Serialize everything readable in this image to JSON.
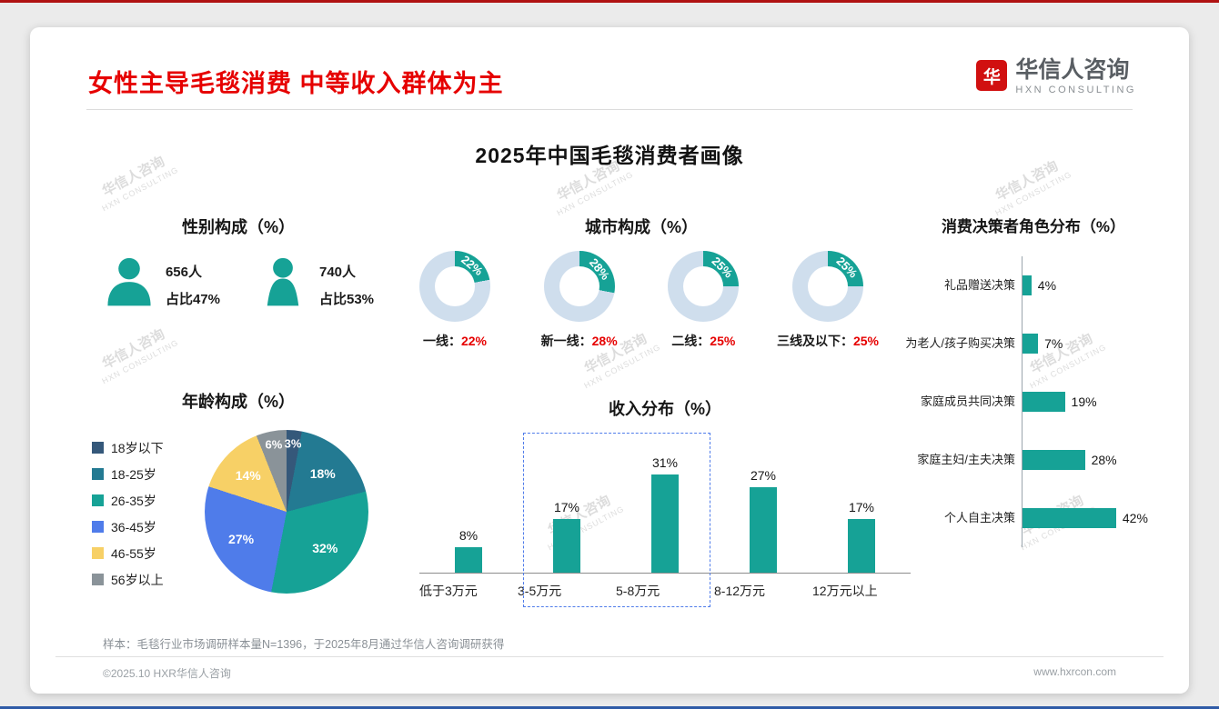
{
  "header": {
    "title": "女性主导毛毯消费 中等收入群体为主",
    "logo_glyph": "华",
    "logo_name": "华信人咨询",
    "logo_sub": "HXN CONSULTING"
  },
  "main_title": "2025年中国毛毯消费者画像",
  "watermark": {
    "line1": "华信人咨询",
    "line2": "HXN CONSULTING"
  },
  "colors": {
    "teal": "#16a296",
    "red": "#e60000",
    "donut_rest": "#cfdeed",
    "highlight_border": "#4f7cea",
    "pie_colors": [
      "#35587a",
      "#237a92",
      "#16a296",
      "#4f7cea",
      "#f7d066",
      "#8a9399"
    ]
  },
  "chart_data": [
    {
      "id": "gender",
      "type": "pictogram",
      "title": "性别构成（%）",
      "items": [
        {
          "gender": "male",
          "count": "656人",
          "share": "占比47%"
        },
        {
          "gender": "female",
          "count": "740人",
          "share": "占比53%"
        }
      ]
    },
    {
      "id": "city",
      "type": "donut",
      "title": "城市构成（%）",
      "items": [
        {
          "label": "一线",
          "value": 22
        },
        {
          "label": "新一线",
          "value": 28
        },
        {
          "label": "二线",
          "value": 25
        },
        {
          "label": "三线及以下",
          "value": 25
        }
      ]
    },
    {
      "id": "age",
      "type": "pie",
      "title": "年龄构成（%）",
      "categories": [
        "18岁以下",
        "18-25岁",
        "26-35岁",
        "36-45岁",
        "46-55岁",
        "56岁以上"
      ],
      "values": [
        3,
        18,
        32,
        27,
        14,
        6
      ],
      "legend_position": "left"
    },
    {
      "id": "income",
      "type": "bar",
      "title": "收入分布（%）",
      "categories": [
        "低于3万元",
        "3-5万元",
        "5-8万元",
        "8-12万元",
        "12万元以上"
      ],
      "values": [
        8,
        17,
        31,
        27,
        17
      ],
      "ylim": [
        0,
        35
      ],
      "highlight_indices": [
        1,
        2
      ]
    },
    {
      "id": "decision",
      "type": "horizontal-bar",
      "title": "消费决策者角色分布（%）",
      "categories": [
        "礼品赠送决策",
        "为老人/孩子购买决策",
        "家庭成员共同决策",
        "家庭主妇/主夫决策",
        "个人自主决策"
      ],
      "values": [
        4,
        7,
        19,
        28,
        42
      ]
    }
  ],
  "footnote": "样本：毛毯行业市场调研样本量N=1396，于2025年8月通过华信人咨询调研获得",
  "footer": {
    "left": "©2025.10 HXR华信人咨询",
    "right": "www.hxrcon.com"
  }
}
